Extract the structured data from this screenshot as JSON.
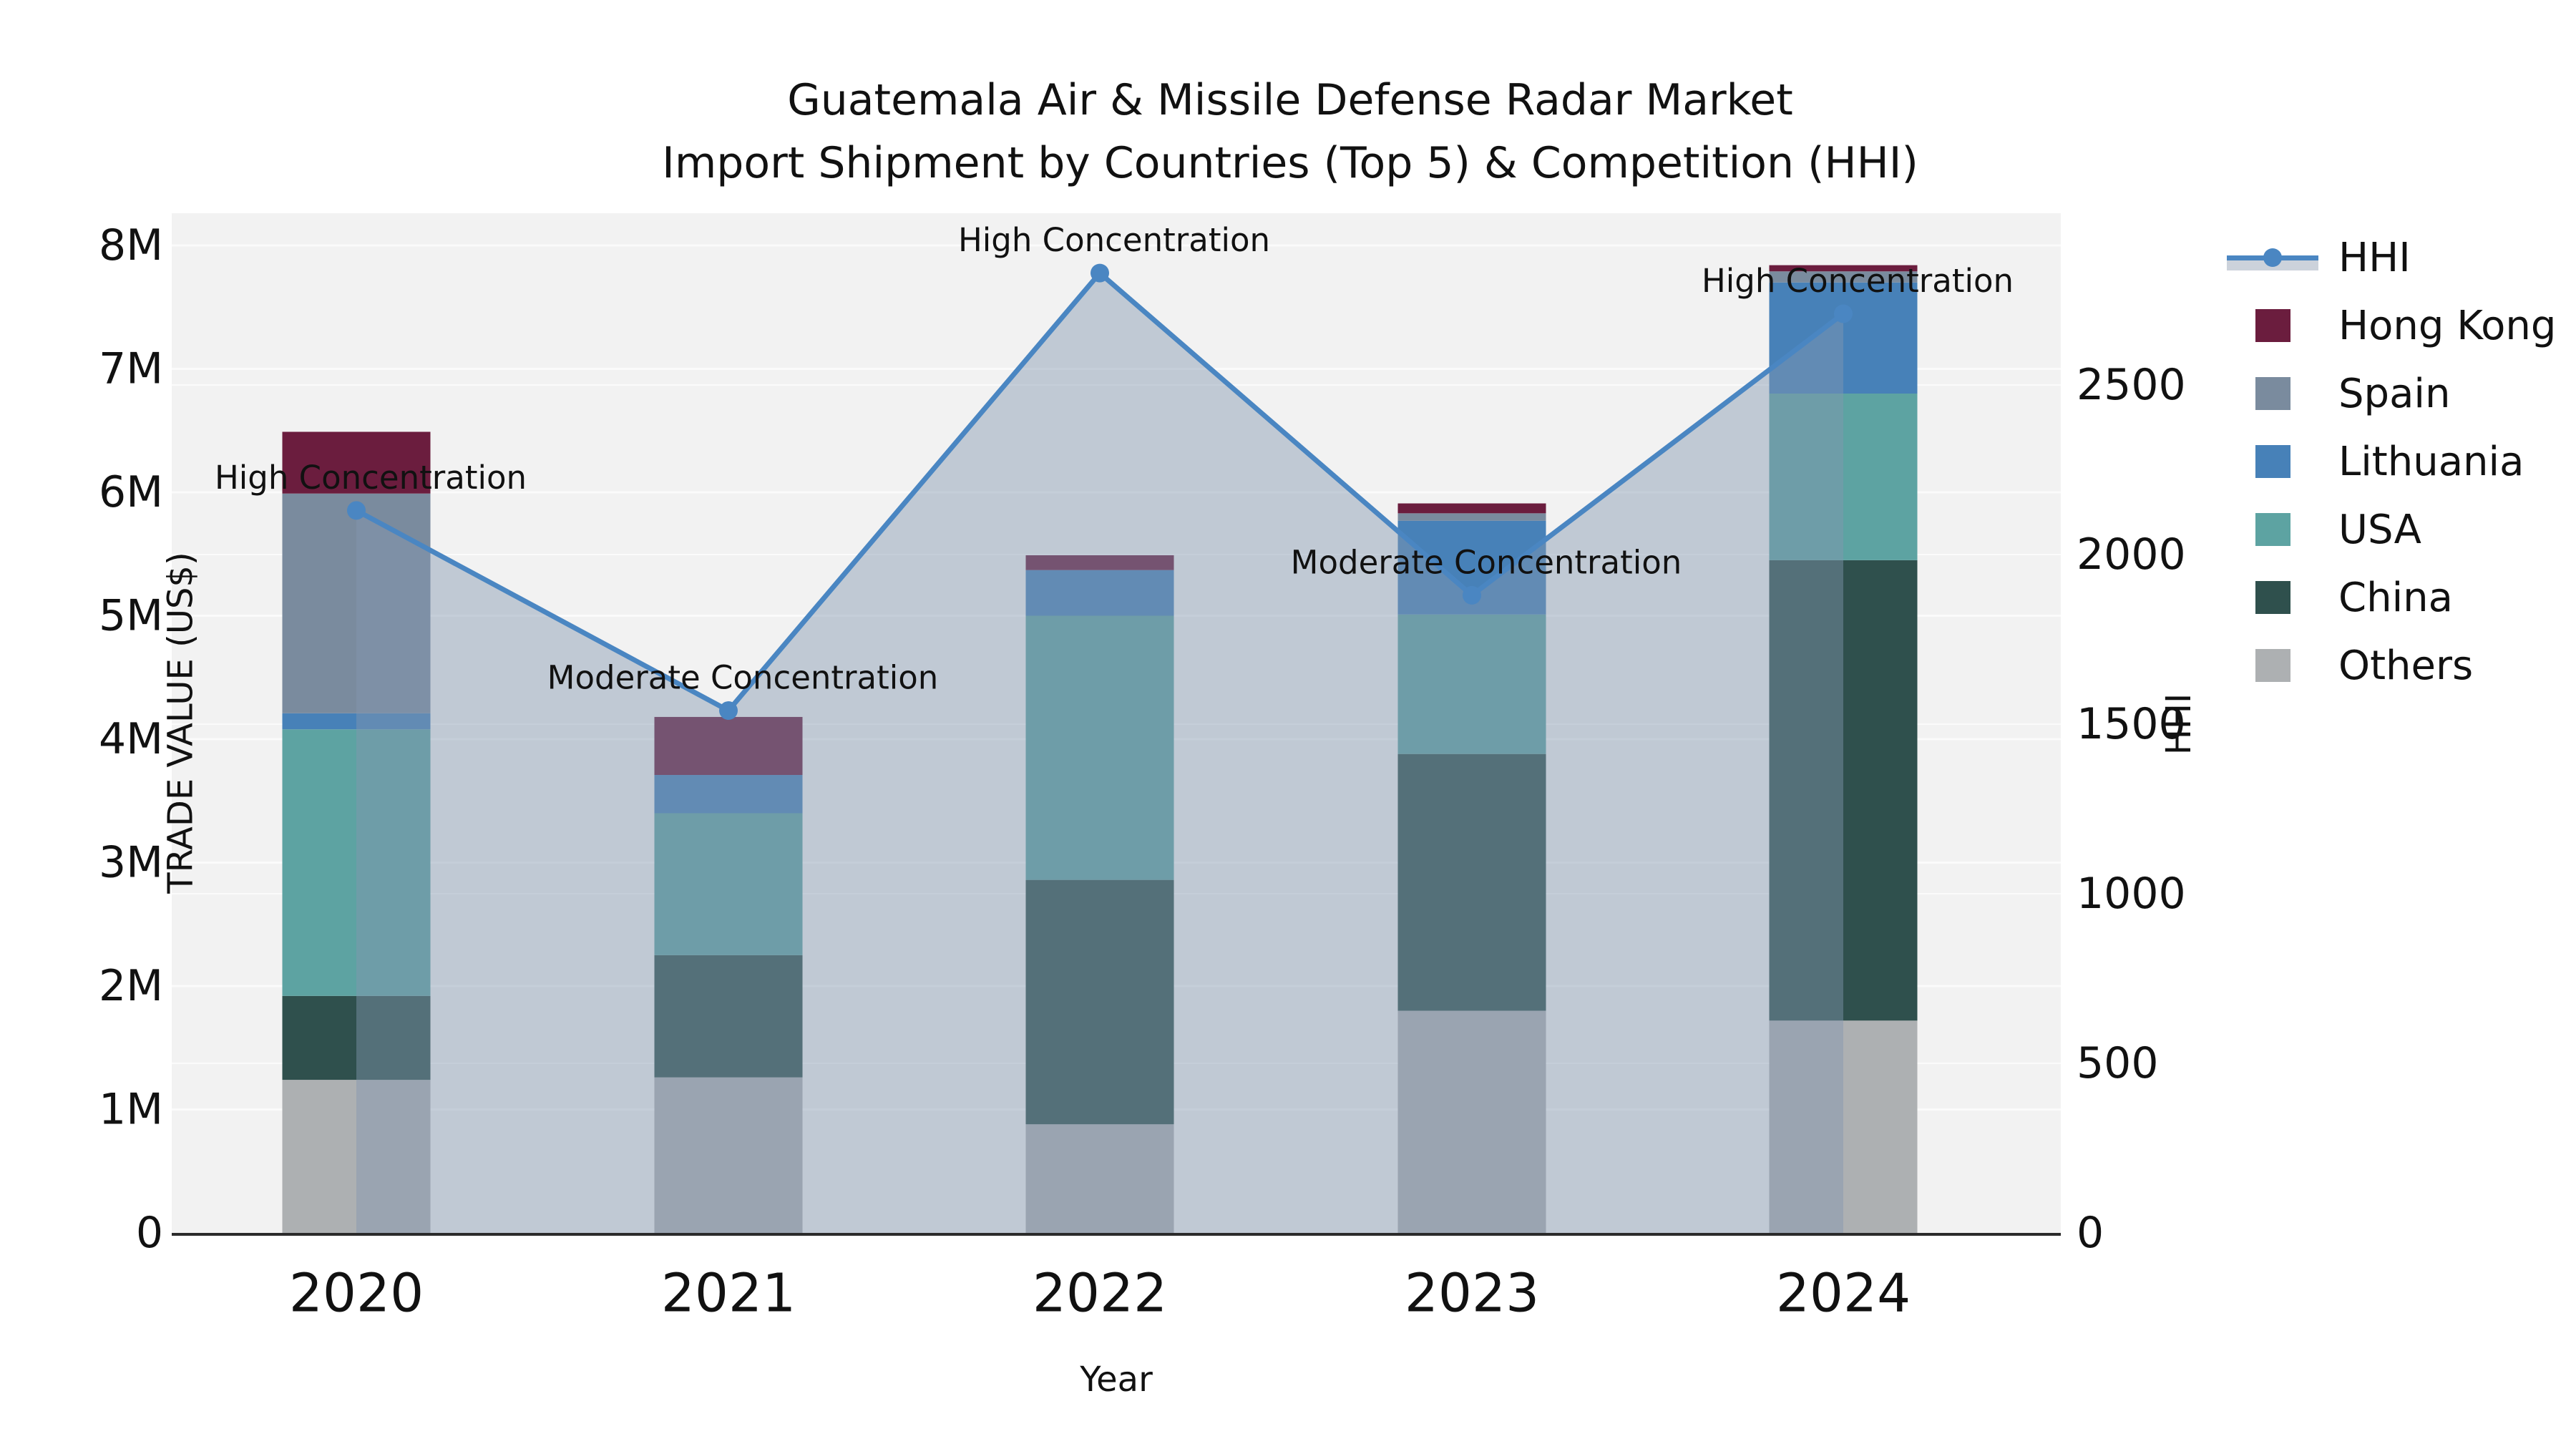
{
  "title": {
    "line1": "Guatemala Air & Missile Defense Radar Market",
    "line2": "Import Shipment by Countries (Top 5) & Competition (HHI)"
  },
  "axes": {
    "x_label": "Year",
    "y_left_label": "TRADE VALUE (US$)",
    "y_right_label": "HHI",
    "x_ticks": [
      "2020",
      "2021",
      "2022",
      "2023",
      "2024"
    ],
    "y_left_ticks": [
      "0",
      "1M",
      "2M",
      "3M",
      "4M",
      "5M",
      "6M",
      "7M",
      "8M"
    ],
    "y_right_ticks": [
      "0",
      "500",
      "1000",
      "1500",
      "2000",
      "2500"
    ]
  },
  "legend": [
    {
      "label": "HHI",
      "type": "line",
      "color": "#4a86c2"
    },
    {
      "label": "Hong Kong",
      "type": "swatch",
      "color": "#6b1d3e"
    },
    {
      "label": "Spain",
      "type": "swatch",
      "color": "#7a8b9e"
    },
    {
      "label": "Lithuania",
      "type": "swatch",
      "color": "#4781b8"
    },
    {
      "label": "USA",
      "type": "swatch",
      "color": "#5da3a2"
    },
    {
      "label": "China",
      "type": "swatch",
      "color": "#2f504d"
    },
    {
      "label": "Others",
      "type": "swatch",
      "color": "#adb0b2"
    }
  ],
  "chart_data": {
    "type": "combo: stacked-bar + line-area",
    "categories": [
      "2020",
      "2021",
      "2022",
      "2023",
      "2024"
    ],
    "bar_value_unit": "million US$",
    "series": [
      {
        "name": "Others",
        "color": "#adb0b2",
        "values": [
          1.24,
          1.26,
          0.88,
          1.8,
          1.72
        ]
      },
      {
        "name": "China",
        "color": "#2f504d",
        "values": [
          0.68,
          0.99,
          1.98,
          2.08,
          3.73
        ]
      },
      {
        "name": "USA",
        "color": "#5da3a2",
        "values": [
          2.16,
          1.15,
          2.14,
          1.13,
          1.35
        ]
      },
      {
        "name": "Lithuania",
        "color": "#4781b8",
        "values": [
          0.13,
          0.31,
          0.37,
          0.76,
          0.9
        ]
      },
      {
        "name": "Spain",
        "color": "#7a8b9e",
        "values": [
          1.78,
          0.0,
          0.0,
          0.06,
          0.09
        ]
      },
      {
        "name": "Hong Kong",
        "color": "#6b1d3e",
        "values": [
          0.5,
          0.47,
          0.12,
          0.08,
          0.05
        ]
      }
    ],
    "bar_totals": [
      6.49,
      4.18,
      5.49,
      5.91,
      7.84
    ],
    "line_series": {
      "name": "HHI",
      "values": [
        2130,
        1540,
        2830,
        1880,
        2710
      ],
      "color": "#4a86c2",
      "area_fill": "rgba(130,150,175,0.45)"
    },
    "annotations": [
      {
        "category": "2020",
        "text": "High Concentration"
      },
      {
        "category": "2021",
        "text": "Moderate Concentration"
      },
      {
        "category": "2022",
        "text": "High Concentration"
      },
      {
        "category": "2023",
        "text": "Moderate Concentration"
      },
      {
        "category": "2024",
        "text": "High Concentration"
      }
    ],
    "y_left_range_usd": [
      0,
      8260000
    ],
    "y_right_range_hhi": [
      0,
      3000
    ],
    "grid": true,
    "legend_position": "right"
  },
  "colors": {
    "plot_background": "#f2f2f2",
    "gridline": "#fbfbfb",
    "axis_line": "#2b2b2b",
    "text": "#111111"
  }
}
